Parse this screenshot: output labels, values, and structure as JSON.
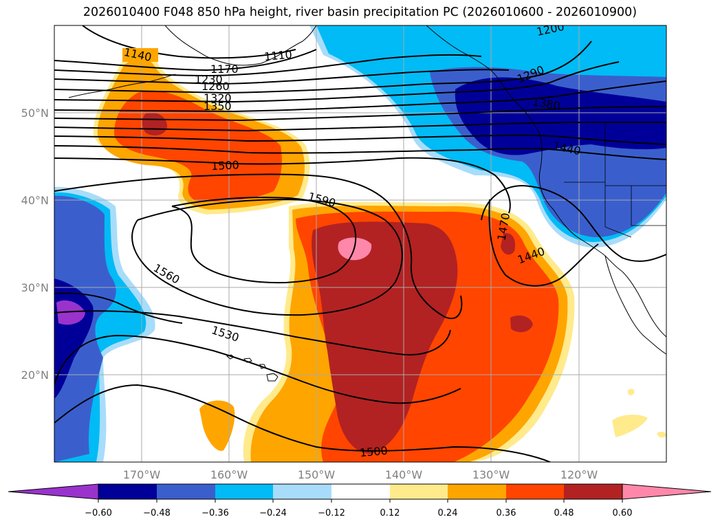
{
  "title": "2026010400 F048 850 hPa height, river basin precipitation PC (2026010600 - 2026010900)",
  "map": {
    "extent": {
      "lon_min": -180,
      "lon_max": -110,
      "lat_min": 10,
      "lat_max": 60
    },
    "lat_ticks": [
      {
        "value": 20,
        "label": "20°N"
      },
      {
        "value": 30,
        "label": "30°N"
      },
      {
        "value": 40,
        "label": "40°N"
      },
      {
        "value": 50,
        "label": "50°N"
      }
    ],
    "lon_ticks": [
      {
        "value": -170,
        "label": "170°W"
      },
      {
        "value": -160,
        "label": "160°W"
      },
      {
        "value": -150,
        "label": "150°W"
      },
      {
        "value": -140,
        "label": "140°W"
      },
      {
        "value": -130,
        "label": "130°W"
      },
      {
        "value": -120,
        "label": "120°W"
      }
    ],
    "grid": true,
    "contour_labels": [
      "1140",
      "1110",
      "1170",
      "1230",
      "1260",
      "1320",
      "1350",
      "1200",
      "1290",
      "1380",
      "1500",
      "1440",
      "1590",
      "1470",
      "1440",
      "1560",
      "1530",
      "1500"
    ]
  },
  "colorbar": {
    "ticks": [
      "−0.60",
      "−0.48",
      "−0.36",
      "−0.24",
      "−0.12",
      "0.12",
      "0.24",
      "0.36",
      "0.48",
      "0.60"
    ],
    "colors": [
      "#9933cc",
      "#000099",
      "#3a5fcd",
      "#00bbf5",
      "#a8dcfb",
      "#ffffff",
      "#ffea8c",
      "#ffa500",
      "#ff4500",
      "#b22222",
      "#ff88aa"
    ],
    "extend": "both"
  },
  "legend_colors": {
    "purple": "#9933cc",
    "navy": "#000099",
    "royal": "#3a5fcd",
    "cyan": "#00bbf5",
    "pale_blue": "#a8dcfb",
    "yellow": "#ffea8c",
    "orange": "#ffa500",
    "red_orange": "#ff4500",
    "firebrick": "#b22222",
    "pink": "#ff88aa"
  }
}
